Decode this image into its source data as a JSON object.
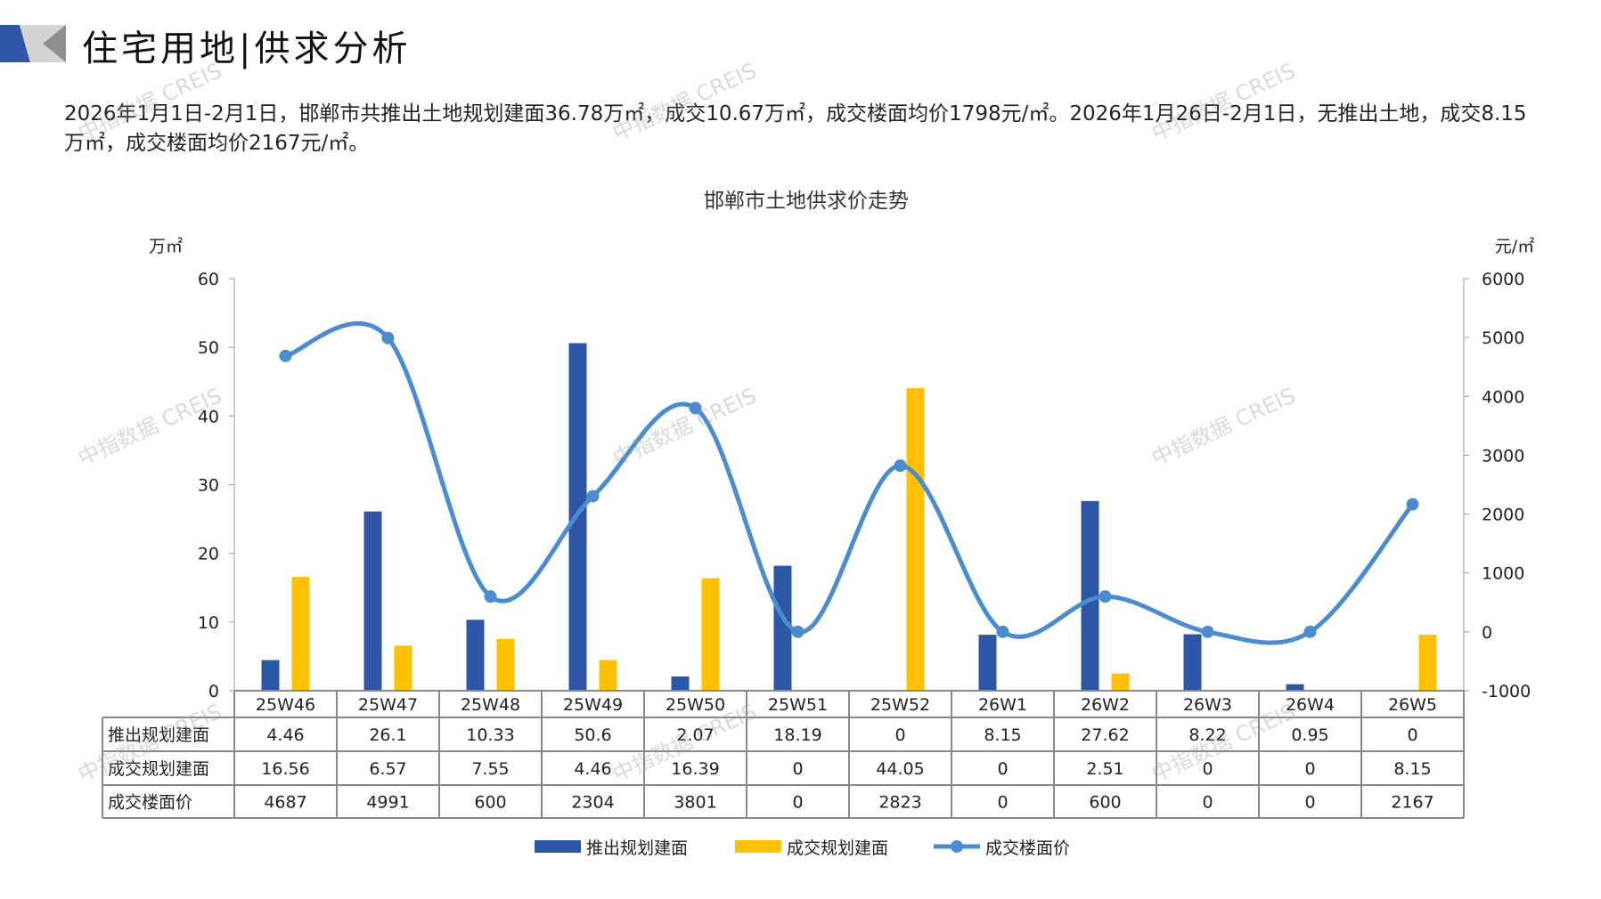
{
  "header": {
    "title": "住宅用地|供求分析"
  },
  "summary": "2026年1月1日-2月1日，邯郸市共推出土地规划建面36.78万㎡，成交10.67万㎡，成交楼面均价1798元/㎡。2026年1月26日-2月1日，无推出土地，成交8.15万㎡，成交楼面均价2167元/㎡。",
  "watermark": "中指数据 CREIS",
  "colors": {
    "supply": "#2E56A6",
    "deal": "#FFC000",
    "price": "#4A8CD0"
  },
  "chart_data": {
    "type": "bar",
    "title": "邯郸市土地供求价走势",
    "ylabel_left": "万㎡",
    "ylabel_right": "元/㎡",
    "ylim_left": [
      0,
      60
    ],
    "yticks_left": [
      0,
      10,
      20,
      30,
      40,
      50,
      60
    ],
    "ylim_right": [
      -1000,
      6000
    ],
    "yticks_right": [
      -1000,
      0,
      1000,
      2000,
      3000,
      4000,
      5000,
      6000
    ],
    "categories": [
      "25W46",
      "25W47",
      "25W48",
      "25W49",
      "25W50",
      "25W51",
      "25W52",
      "26W1",
      "26W2",
      "26W3",
      "26W4",
      "26W5"
    ],
    "series": [
      {
        "name": "推出规划建面",
        "type": "bar",
        "axis": "left",
        "values": [
          "4.46",
          "26.1",
          "10.33",
          "50.6",
          "2.07",
          "18.19",
          "0",
          "8.15",
          "27.62",
          "8.22",
          "0.95",
          "0"
        ]
      },
      {
        "name": "成交规划建面",
        "type": "bar",
        "axis": "left",
        "values": [
          "16.56",
          "6.57",
          "7.55",
          "4.46",
          "16.39",
          "0",
          "44.05",
          "0",
          "2.51",
          "0",
          "0",
          "8.15"
        ]
      },
      {
        "name": "成交楼面价",
        "type": "line",
        "axis": "right",
        "values": [
          "4687",
          "4991",
          "600",
          "2304",
          "3801",
          "0",
          "2823",
          "0",
          "600",
          "0",
          "0",
          "2167"
        ]
      }
    ],
    "legend_position": "bottom",
    "data_table": true
  }
}
